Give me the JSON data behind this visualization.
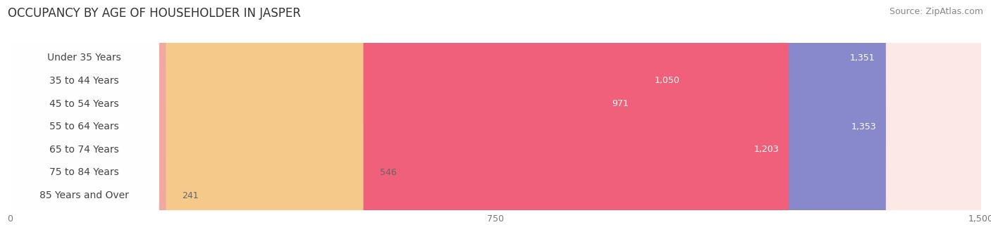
{
  "title": "OCCUPANCY BY AGE OF HOUSEHOLDER IN JASPER",
  "source": "Source: ZipAtlas.com",
  "categories": [
    "Under 35 Years",
    "35 to 44 Years",
    "45 to 54 Years",
    "55 to 64 Years",
    "65 to 74 Years",
    "75 to 84 Years",
    "85 Years and Over"
  ],
  "values": [
    1351,
    1050,
    971,
    1353,
    1203,
    546,
    241
  ],
  "bar_colors": [
    "#7ab8e0",
    "#b89cc8",
    "#4dbdad",
    "#8888cc",
    "#f0607a",
    "#f5c98a",
    "#f0a8a0"
  ],
  "bar_bg_colors": [
    "#e8f2fb",
    "#ede8f5",
    "#d5f0ee",
    "#e8e8f5",
    "#fde0ea",
    "#fdf0dc",
    "#fce8e5"
  ],
  "row_bg_color": "#f0f0f0",
  "xlim": [
    0,
    1500
  ],
  "xticks": [
    0,
    750,
    1500
  ],
  "xtick_labels": [
    "0",
    "750",
    "1,500"
  ],
  "title_fontsize": 12,
  "source_fontsize": 9,
  "label_fontsize": 10,
  "value_fontsize": 9,
  "background_color": "#ffffff"
}
